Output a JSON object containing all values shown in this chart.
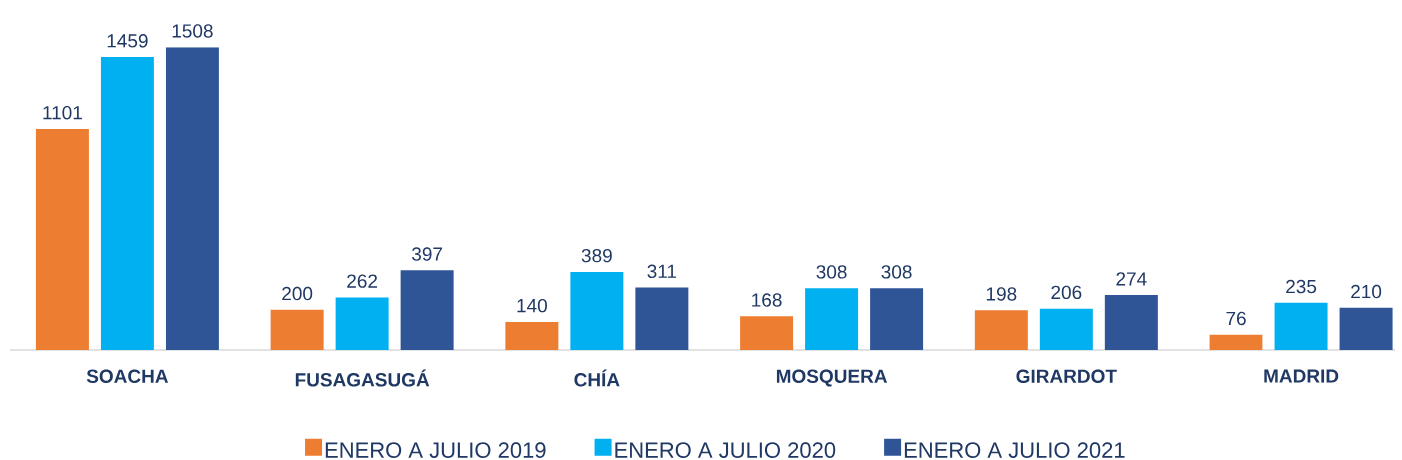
{
  "chart_data": {
    "type": "bar",
    "categories": [
      "SOACHA",
      "FUSAGASUGÁ",
      "CHÍA",
      "MOSQUERA",
      "GIRARDOT",
      "MADRID"
    ],
    "series": [
      {
        "name": "ENERO A JULIO 2019",
        "color": "#ed7d31",
        "values": [
          1101,
          200,
          140,
          168,
          198,
          76
        ]
      },
      {
        "name": "ENERO A JULIO 2020",
        "color": "#00b0f0",
        "values": [
          1459,
          262,
          389,
          308,
          206,
          235
        ]
      },
      {
        "name": "ENERO A JULIO 2021",
        "color": "#2f5597",
        "values": [
          1508,
          397,
          311,
          308,
          274,
          210
        ]
      }
    ],
    "data_labels": true,
    "legend": "bottom"
  }
}
